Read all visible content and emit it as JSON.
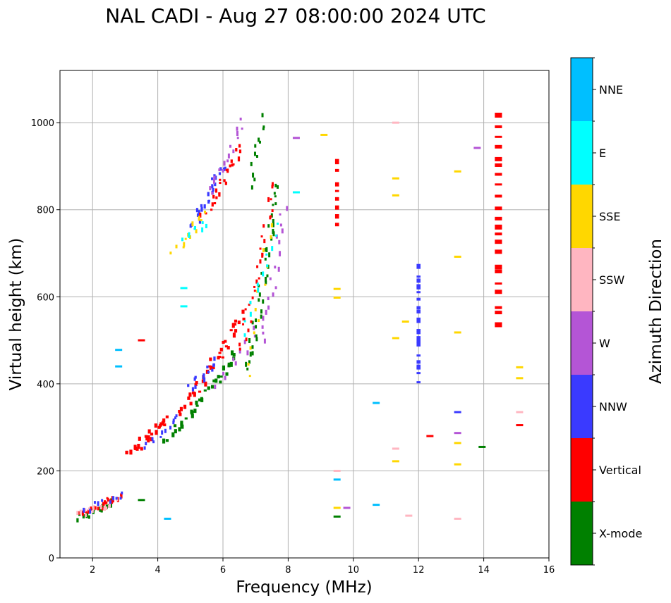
{
  "chart_data": {
    "type": "scatter",
    "title": "NAL CADI - Aug 27 08:00:00 2024 UTC",
    "xlabel": "Frequency (MHz)",
    "ylabel": "Virtual height (km)",
    "xlim": [
      1,
      16
    ],
    "ylim": [
      0,
      1120
    ],
    "xticks": [
      2,
      4,
      6,
      8,
      10,
      12,
      14,
      16
    ],
    "yticks": [
      0,
      200,
      400,
      600,
      800,
      1000
    ],
    "grid": true,
    "colorbar": {
      "label": "Azimuth Direction",
      "categories": [
        {
          "name": "X-mode",
          "color": "#008000"
        },
        {
          "name": "Vertical",
          "color": "#ff0000"
        },
        {
          "name": "NNW",
          "color": "#3a3aff"
        },
        {
          "name": "W",
          "color": "#b455d6"
        },
        {
          "name": "SSW",
          "color": "#ffb6c1"
        },
        {
          "name": "SSE",
          "color": "#ffd700"
        },
        {
          "name": "E",
          "color": "#00ffff"
        },
        {
          "name": "NNE",
          "color": "#00bfff"
        }
      ]
    },
    "traces": [
      {
        "name": "X-mode",
        "color": "#008000",
        "x0": 1.5,
        "x1": 2.6,
        "y0": 90,
        "y1": 130,
        "n": 18,
        "w": 0.07
      },
      {
        "name": "Vertical",
        "color": "#ff0000",
        "x0": 1.6,
        "x1": 2.9,
        "y0": 105,
        "y1": 140,
        "n": 24,
        "w": 0.06
      },
      {
        "name": "SSW",
        "color": "#ffb6c1",
        "x0": 1.5,
        "x1": 2.7,
        "y0": 100,
        "y1": 130,
        "n": 14,
        "w": 0.06
      },
      {
        "name": "NNW",
        "color": "#3a3aff",
        "x0": 1.8,
        "x1": 2.9,
        "y0": 110,
        "y1": 150,
        "n": 10,
        "w": 0.05
      },
      {
        "name": "Vertical",
        "color": "#ff0000",
        "x0": 3.0,
        "x1": 4.3,
        "y0": 240,
        "y1": 320,
        "n": 26,
        "w": 0.09
      },
      {
        "name": "NNW",
        "color": "#3a3aff",
        "x0": 3.6,
        "x1": 4.6,
        "y0": 250,
        "y1": 330,
        "n": 12,
        "w": 0.06
      },
      {
        "name": "X-mode",
        "color": "#008000",
        "x0": 4.2,
        "x1": 6.4,
        "y0": 270,
        "y1": 470,
        "n": 36,
        "w": 0.09
      },
      {
        "name": "Vertical",
        "color": "#ff0000",
        "x0": 4.6,
        "x1": 6.6,
        "y0": 330,
        "y1": 560,
        "n": 38,
        "w": 0.09
      },
      {
        "name": "NNW",
        "color": "#3a3aff",
        "x0": 4.9,
        "x1": 5.8,
        "y0": 390,
        "y1": 450,
        "n": 14,
        "w": 0.07
      },
      {
        "name": "W",
        "color": "#b455d6",
        "x0": 5.8,
        "x1": 7.0,
        "y0": 400,
        "y1": 520,
        "n": 10,
        "w": 0.05
      },
      {
        "name": "X-mode",
        "color": "#008000",
        "x0": 6.7,
        "x1": 7.7,
        "y0": 430,
        "y1": 860,
        "n": 40,
        "w": 0.06
      },
      {
        "name": "Vertical",
        "color": "#ff0000",
        "x0": 6.5,
        "x1": 7.6,
        "y0": 480,
        "y1": 860,
        "n": 28,
        "w": 0.06
      },
      {
        "name": "W",
        "color": "#b455d6",
        "x0": 7.2,
        "x1": 7.9,
        "y0": 500,
        "y1": 800,
        "n": 20,
        "w": 0.05
      },
      {
        "name": "SSE",
        "color": "#ffd700",
        "x0": 6.8,
        "x1": 7.4,
        "y0": 420,
        "y1": 760,
        "n": 12,
        "w": 0.05
      },
      {
        "name": "E",
        "color": "#00ffff",
        "x0": 6.6,
        "x1": 7.6,
        "y0": 520,
        "y1": 760,
        "n": 12,
        "w": 0.05
      },
      {
        "name": "NNW",
        "color": "#3a3aff",
        "x0": 5.0,
        "x1": 6.0,
        "y0": 760,
        "y1": 900,
        "n": 24,
        "w": 0.07
      },
      {
        "name": "Vertical",
        "color": "#ff0000",
        "x0": 5.4,
        "x1": 6.5,
        "y0": 790,
        "y1": 940,
        "n": 24,
        "w": 0.07
      },
      {
        "name": "W",
        "color": "#b455d6",
        "x0": 5.6,
        "x1": 6.6,
        "y0": 840,
        "y1": 1000,
        "n": 16,
        "w": 0.06
      },
      {
        "name": "SSE",
        "color": "#ffd700",
        "x0": 4.5,
        "x1": 5.4,
        "y0": 700,
        "y1": 790,
        "n": 12,
        "w": 0.06
      },
      {
        "name": "E",
        "color": "#00ffff",
        "x0": 4.8,
        "x1": 5.5,
        "y0": 740,
        "y1": 770,
        "n": 8,
        "w": 0.06
      },
      {
        "name": "X-mode",
        "color": "#008000",
        "x0": 6.8,
        "x1": 7.2,
        "y0": 860,
        "y1": 1010,
        "n": 12,
        "w": 0.05
      },
      {
        "name": "Vertical",
        "color": "#ff0000",
        "x0": 9.5,
        "x1": 9.5,
        "y0": 760,
        "y1": 920,
        "n": 10,
        "w": 0.12
      },
      {
        "name": "NNW",
        "color": "#3a3aff",
        "x0": 12.0,
        "x1": 12.0,
        "y0": 410,
        "y1": 665,
        "n": 22,
        "w": 0.12
      },
      {
        "name": "Vertical",
        "color": "#ff0000",
        "x0": 14.45,
        "x1": 14.45,
        "y0": 535,
        "y1": 1015,
        "n": 22,
        "w": 0.22
      }
    ],
    "segments": [
      {
        "name": "SSE",
        "color": "#ffd700",
        "x": 13.2,
        "y": 888
      },
      {
        "name": "SSE",
        "color": "#ffd700",
        "x": 13.2,
        "y": 692
      },
      {
        "name": "SSE",
        "color": "#ffd700",
        "x": 13.2,
        "y": 518
      },
      {
        "name": "NNW",
        "color": "#3a3aff",
        "x": 13.2,
        "y": 335
      },
      {
        "name": "W",
        "color": "#b455d6",
        "x": 13.2,
        "y": 287
      },
      {
        "name": "SSE",
        "color": "#ffd700",
        "x": 13.2,
        "y": 264
      },
      {
        "name": "SSE",
        "color": "#ffd700",
        "x": 13.2,
        "y": 215
      },
      {
        "name": "SSW",
        "color": "#ffb6c1",
        "x": 13.2,
        "y": 90
      },
      {
        "name": "W",
        "color": "#b455d6",
        "x": 13.8,
        "y": 942
      },
      {
        "name": "X-mode",
        "color": "#008000",
        "x": 13.95,
        "y": 255
      },
      {
        "name": "SSE",
        "color": "#ffd700",
        "x": 15.1,
        "y": 438
      },
      {
        "name": "SSE",
        "color": "#ffd700",
        "x": 15.1,
        "y": 413
      },
      {
        "name": "SSW",
        "color": "#ffb6c1",
        "x": 15.1,
        "y": 335
      },
      {
        "name": "Vertical",
        "color": "#ff0000",
        "x": 15.1,
        "y": 305
      },
      {
        "name": "Vertical",
        "color": "#ff0000",
        "x": 12.35,
        "y": 280
      },
      {
        "name": "SSE",
        "color": "#ffd700",
        "x": 11.3,
        "y": 505
      },
      {
        "name": "SSE",
        "color": "#ffd700",
        "x": 11.3,
        "y": 833
      },
      {
        "name": "SSE",
        "color": "#ffd700",
        "x": 11.3,
        "y": 872
      },
      {
        "name": "SSW",
        "color": "#ffb6c1",
        "x": 11.3,
        "y": 251
      },
      {
        "name": "SSE",
        "color": "#ffd700",
        "x": 11.3,
        "y": 222
      },
      {
        "name": "E",
        "color": "#00bfff",
        "x": 10.7,
        "y": 356
      },
      {
        "name": "E",
        "color": "#00bfff",
        "x": 10.7,
        "y": 122
      },
      {
        "name": "E",
        "color": "#00ffff",
        "x": 8.25,
        "y": 840
      },
      {
        "name": "W",
        "color": "#b455d6",
        "x": 8.25,
        "y": 965
      },
      {
        "name": "SSE",
        "color": "#ffd700",
        "x": 9.1,
        "y": 972
      },
      {
        "name": "SSE",
        "color": "#ffd700",
        "x": 9.5,
        "y": 598
      },
      {
        "name": "SSE",
        "color": "#ffd700",
        "x": 9.5,
        "y": 618
      },
      {
        "name": "SSW",
        "color": "#ffb6c1",
        "x": 9.5,
        "y": 200
      },
      {
        "name": "E",
        "color": "#00bfff",
        "x": 9.5,
        "y": 180
      },
      {
        "name": "SSE",
        "color": "#ffd700",
        "x": 9.5,
        "y": 115
      },
      {
        "name": "X-mode",
        "color": "#008000",
        "x": 9.5,
        "y": 95
      },
      {
        "name": "W",
        "color": "#b455d6",
        "x": 9.8,
        "y": 115
      },
      {
        "name": "E",
        "color": "#00ffff",
        "x": 4.8,
        "y": 620
      },
      {
        "name": "E",
        "color": "#00ffff",
        "x": 4.8,
        "y": 578
      },
      {
        "name": "E",
        "color": "#00bfff",
        "x": 2.8,
        "y": 478
      },
      {
        "name": "E",
        "color": "#00bfff",
        "x": 2.8,
        "y": 440
      },
      {
        "name": "Vertical",
        "color": "#ff0000",
        "x": 3.5,
        "y": 500
      },
      {
        "name": "X-mode",
        "color": "#008000",
        "x": 3.5,
        "y": 133
      },
      {
        "name": "E",
        "color": "#00bfff",
        "x": 4.3,
        "y": 90
      },
      {
        "name": "SSE",
        "color": "#ffd700",
        "x": 11.6,
        "y": 543
      },
      {
        "name": "SSW",
        "color": "#ffb6c1",
        "x": 11.7,
        "y": 97
      },
      {
        "name": "SSW",
        "color": "#ffb6c1",
        "x": 11.3,
        "y": 1000
      }
    ]
  }
}
